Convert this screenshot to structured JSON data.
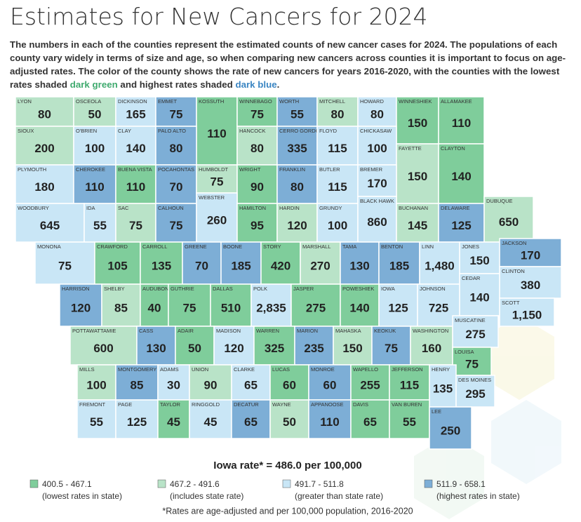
{
  "header": {
    "title": "Estimates for New Cancers for 2024",
    "intro": {
      "before": "The numbers in each of the counties represent the estimated counts of new cancer cases for 2024. The populations of each county vary widely in terms of size and age, so when comparing new cancers across counties it is important to focus on age-adjusted rates. The color of the county shows the rate of new cancers for years 2016-2020, with the counties with the lowest rates shaded ",
      "green": "dark green",
      "middle": " and highest rates shaded ",
      "blue": "dark blue",
      "after": "."
    }
  },
  "counties": [
    {
      "name": "LYON",
      "count": "80",
      "class": 1
    },
    {
      "name": "OSCEOLA",
      "count": "50",
      "class": 1
    },
    {
      "name": "DICKINSON",
      "count": "165",
      "class": 2
    },
    {
      "name": "EMMET",
      "count": "75",
      "class": 3
    },
    {
      "name": "KOSSUTH",
      "count": "110",
      "class": 0
    },
    {
      "name": "WINNEBAGO",
      "count": "75",
      "class": 0
    },
    {
      "name": "WORTH",
      "count": "55",
      "class": 3
    },
    {
      "name": "MITCHELL",
      "count": "80",
      "class": 1
    },
    {
      "name": "HOWARD",
      "count": "80",
      "class": 2
    },
    {
      "name": "WINNESHIEK",
      "count": "150",
      "class": 0
    },
    {
      "name": "ALLAMAKEE",
      "count": "110",
      "class": 0
    },
    {
      "name": "SIOUX",
      "count": "200",
      "class": 1
    },
    {
      "name": "O'BRIEN",
      "count": "100",
      "class": 2
    },
    {
      "name": "CLAY",
      "count": "140",
      "class": 2
    },
    {
      "name": "PALO ALTO",
      "count": "80",
      "class": 3
    },
    {
      "name": "HANCOCK",
      "count": "80",
      "class": 1
    },
    {
      "name": "CERRO GORDO",
      "count": "335",
      "class": 3
    },
    {
      "name": "FLOYD",
      "count": "115",
      "class": 2
    },
    {
      "name": "CHICKASAW",
      "count": "100",
      "class": 2
    },
    {
      "name": "FAYETTE",
      "count": "150",
      "class": 1
    },
    {
      "name": "CLAYTON",
      "count": "140",
      "class": 0
    },
    {
      "name": "PLYMOUTH",
      "count": "180",
      "class": 2
    },
    {
      "name": "CHEROKEE",
      "count": "110",
      "class": 3
    },
    {
      "name": "BUENA VISTA",
      "count": "110",
      "class": 0
    },
    {
      "name": "POCAHONTAS",
      "count": "70",
      "class": 3
    },
    {
      "name": "HUMBOLDT",
      "count": "75",
      "class": 1
    },
    {
      "name": "WRIGHT",
      "count": "90",
      "class": 0
    },
    {
      "name": "FRANKLIN",
      "count": "80",
      "class": 3
    },
    {
      "name": "BUTLER",
      "count": "115",
      "class": 2
    },
    {
      "name": "BREMER",
      "count": "170",
      "class": 2
    },
    {
      "name": "WOODBURY",
      "count": "645",
      "class": 2
    },
    {
      "name": "IDA",
      "count": "55",
      "class": 2
    },
    {
      "name": "SAC",
      "count": "75",
      "class": 1
    },
    {
      "name": "CALHOUN",
      "count": "75",
      "class": 3
    },
    {
      "name": "WEBSTER",
      "count": "260",
      "class": 2
    },
    {
      "name": "HAMILTON",
      "count": "95",
      "class": 0
    },
    {
      "name": "HARDIN",
      "count": "120",
      "class": 1
    },
    {
      "name": "GRUNDY",
      "count": "100",
      "class": 2
    },
    {
      "name": "BLACK HAWK",
      "count": "860",
      "class": 2
    },
    {
      "name": "BUCHANAN",
      "count": "145",
      "class": 1
    },
    {
      "name": "DELAWARE",
      "count": "125",
      "class": 3
    },
    {
      "name": "DUBUQUE",
      "count": "650",
      "class": 1
    },
    {
      "name": "MONONA",
      "count": "75",
      "class": 2
    },
    {
      "name": "CRAWFORD",
      "count": "105",
      "class": 0
    },
    {
      "name": "CARROLL",
      "count": "135",
      "class": 0
    },
    {
      "name": "GREENE",
      "count": "70",
      "class": 3
    },
    {
      "name": "BOONE",
      "count": "185",
      "class": 3
    },
    {
      "name": "STORY",
      "count": "420",
      "class": 0
    },
    {
      "name": "MARSHALL",
      "count": "270",
      "class": 1
    },
    {
      "name": "TAMA",
      "count": "130",
      "class": 3
    },
    {
      "name": "BENTON",
      "count": "185",
      "class": 3
    },
    {
      "name": "LINN",
      "count": "1,480",
      "class": 2
    },
    {
      "name": "JONES",
      "count": "150",
      "class": 2
    },
    {
      "name": "JACKSON",
      "count": "170",
      "class": 3
    },
    {
      "name": "HARRISON",
      "count": "120",
      "class": 3
    },
    {
      "name": "SHELBY",
      "count": "85",
      "class": 1
    },
    {
      "name": "AUDUBON",
      "count": "40",
      "class": 0
    },
    {
      "name": "GUTHRIE",
      "count": "75",
      "class": 0
    },
    {
      "name": "DALLAS",
      "count": "510",
      "class": 0
    },
    {
      "name": "POLK",
      "count": "2,835",
      "class": 2
    },
    {
      "name": "JASPER",
      "count": "275",
      "class": 0
    },
    {
      "name": "POWESHIEK",
      "count": "140",
      "class": 0
    },
    {
      "name": "IOWA",
      "count": "125",
      "class": 2
    },
    {
      "name": "JOHNSON",
      "count": "725",
      "class": 2
    },
    {
      "name": "CEDAR",
      "count": "140",
      "class": 2
    },
    {
      "name": "CLINTON",
      "count": "380",
      "class": 2
    },
    {
      "name": "SCOTT",
      "count": "1,150",
      "class": 2
    },
    {
      "name": "POTTAWATTAMIE",
      "count": "600",
      "class": 1
    },
    {
      "name": "CASS",
      "count": "130",
      "class": 3
    },
    {
      "name": "ADAIR",
      "count": "50",
      "class": 0
    },
    {
      "name": "MADISON",
      "count": "120",
      "class": 2
    },
    {
      "name": "WARREN",
      "count": "325",
      "class": 0
    },
    {
      "name": "MARION",
      "count": "235",
      "class": 3
    },
    {
      "name": "MAHASKA",
      "count": "150",
      "class": 1
    },
    {
      "name": "KEOKUK",
      "count": "75",
      "class": 3
    },
    {
      "name": "WASHINGTON",
      "count": "160",
      "class": 1
    },
    {
      "name": "MUSCATINE",
      "count": "275",
      "class": 2
    },
    {
      "name": "LOUISA",
      "count": "75",
      "class": 0
    },
    {
      "name": "MILLS",
      "count": "100",
      "class": 1
    },
    {
      "name": "MONTGOMERY",
      "count": "85",
      "class": 3
    },
    {
      "name": "ADAMS",
      "count": "30",
      "class": 2
    },
    {
      "name": "UNION",
      "count": "90",
      "class": 1
    },
    {
      "name": "CLARKE",
      "count": "65",
      "class": 2
    },
    {
      "name": "LUCAS",
      "count": "60",
      "class": 0
    },
    {
      "name": "MONROE",
      "count": "60",
      "class": 3
    },
    {
      "name": "WAPELLO",
      "count": "255",
      "class": 0
    },
    {
      "name": "JEFFERSON",
      "count": "115",
      "class": 0
    },
    {
      "name": "HENRY",
      "count": "135",
      "class": 2
    },
    {
      "name": "DES MOINES",
      "count": "295",
      "class": 2
    },
    {
      "name": "FREMONT",
      "count": "55",
      "class": 2
    },
    {
      "name": "PAGE",
      "count": "125",
      "class": 2
    },
    {
      "name": "TAYLOR",
      "count": "45",
      "class": 0
    },
    {
      "name": "RINGGOLD",
      "count": "45",
      "class": 2
    },
    {
      "name": "DECATUR",
      "count": "65",
      "class": 3
    },
    {
      "name": "WAYNE",
      "count": "50",
      "class": 1
    },
    {
      "name": "APPANOOSE",
      "count": "110",
      "class": 3
    },
    {
      "name": "DAVIS",
      "count": "65",
      "class": 0
    },
    {
      "name": "VAN BUREN",
      "count": "55",
      "class": 0
    },
    {
      "name": "LEE",
      "count": "250",
      "class": 3
    }
  ],
  "state_rate": "Iowa rate* = 486.0 per 100,000",
  "legend": [
    {
      "range": "400.5 - 467.1",
      "description": "(lowest rates in state)",
      "color": "#7fcd9b"
    },
    {
      "range": "467.2 - 491.6",
      "description": "(includes state rate)",
      "color": "#b9e3c8"
    },
    {
      "range": "491.7 - 511.8",
      "description": "(greater than state rate)",
      "color": "#c9e6f6"
    },
    {
      "range": "511.9 - 658.1",
      "description": "(highest rates in state)",
      "color": "#7daed6"
    }
  ],
  "footnote": "*Rates are age-adjusted and per 100,000 population, 2016-2020"
}
